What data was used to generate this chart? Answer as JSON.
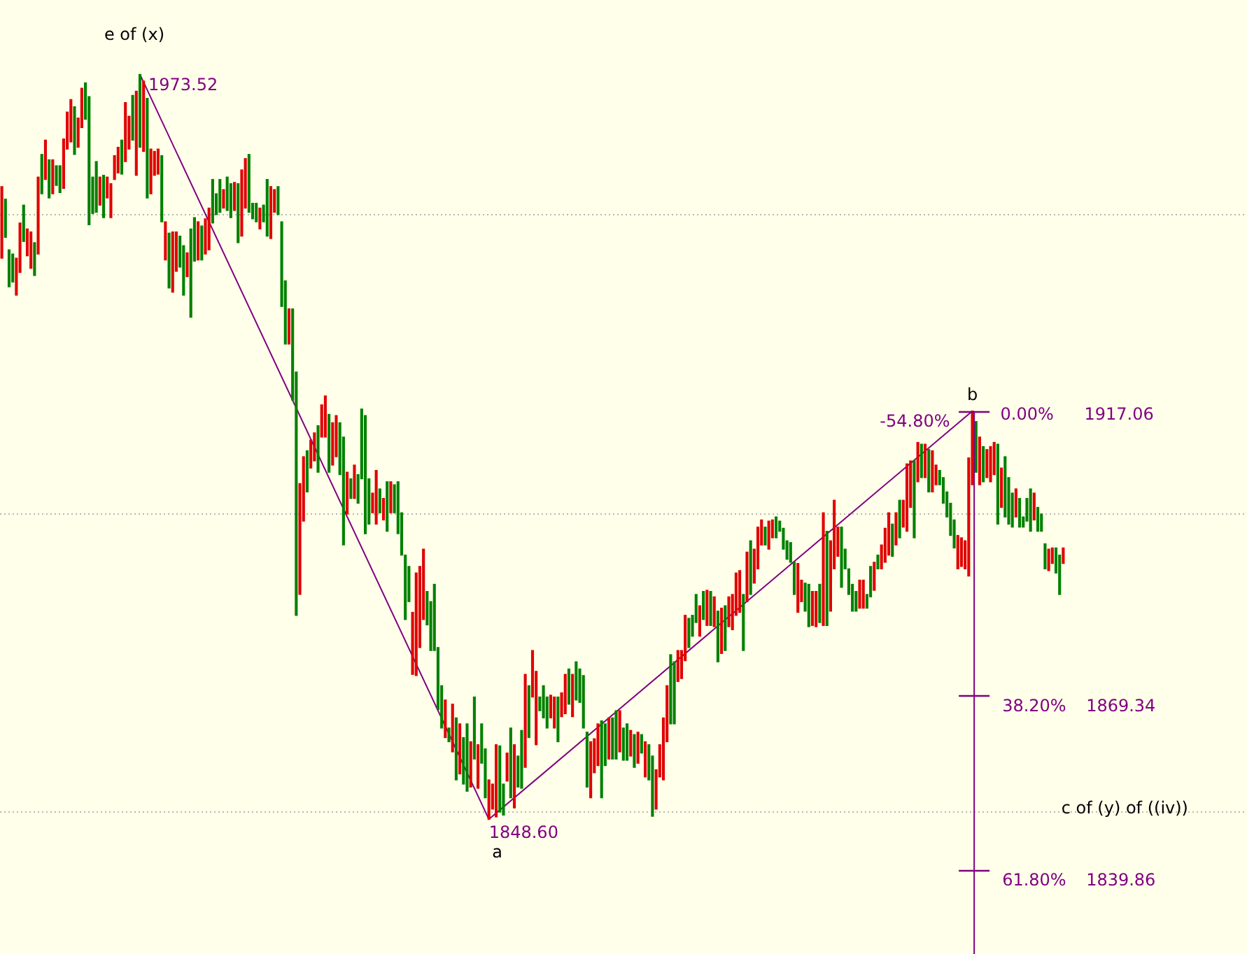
{
  "chart_data": {
    "type": "candlestick",
    "categories": [
      null,
      null,
      null,
      null,
      null,
      null,
      null,
      null,
      null,
      null,
      null,
      null,
      null,
      null,
      null,
      null,
      null,
      null,
      null,
      null,
      null,
      null,
      null,
      null,
      null,
      null,
      null,
      null,
      null,
      null,
      null,
      null,
      null,
      null,
      null,
      null,
      null,
      null,
      null,
      null,
      null,
      null,
      null,
      null,
      null,
      null,
      null,
      null,
      null,
      null,
      null,
      null,
      null,
      null,
      null,
      null,
      null,
      null,
      null,
      null,
      null,
      null,
      null,
      null,
      null,
      null,
      null,
      null,
      null,
      null,
      null,
      null,
      null,
      null,
      null,
      null,
      null,
      null,
      null,
      null,
      null,
      null,
      null,
      null,
      null,
      null,
      null,
      null,
      null,
      null,
      null,
      null,
      null,
      null,
      null,
      null,
      null,
      null,
      null,
      null,
      null,
      null,
      null,
      null,
      null,
      null,
      null,
      null,
      null,
      null,
      null,
      null,
      null,
      null,
      null,
      null,
      null,
      null,
      null,
      null,
      null,
      null,
      null,
      null,
      null,
      null,
      null,
      null,
      null,
      null,
      null,
      null,
      null,
      null,
      null,
      null,
      null,
      null,
      null,
      null,
      null,
      null,
      null,
      null,
      null,
      null,
      null,
      null,
      null,
      null,
      null,
      null,
      null,
      null,
      null,
      null,
      null,
      null,
      null,
      null,
      null,
      null,
      null,
      null,
      null,
      null,
      null,
      null,
      null,
      null,
      null,
      null,
      null,
      null,
      null,
      null,
      null,
      null,
      null,
      null,
      null,
      null,
      null,
      null,
      null,
      null,
      null,
      null,
      null,
      null,
      null,
      null,
      null,
      null,
      null,
      null,
      null,
      null,
      null,
      null,
      null,
      null,
      null,
      null,
      null,
      null,
      null,
      null,
      null,
      null,
      null,
      null,
      null,
      null,
      null,
      null,
      null,
      null,
      null,
      null,
      null,
      null,
      null,
      null,
      null,
      null,
      null,
      null,
      null,
      null,
      null,
      null,
      null,
      null,
      null,
      null,
      null,
      null,
      null,
      null,
      null,
      null,
      null,
      null,
      null,
      null,
      null,
      null,
      null,
      null,
      null,
      null,
      null,
      null,
      null,
      null,
      null,
      null,
      null,
      null,
      null,
      null,
      null,
      null,
      null,
      null,
      null,
      null,
      null,
      null,
      null,
      null,
      null,
      null,
      null,
      null,
      null,
      null,
      null,
      null,
      null,
      null,
      null,
      null,
      null,
      null,
      null,
      null,
      null,
      null,
      null,
      null,
      null
    ],
    "ohlc": [
      [
        1942.7,
        1954.7,
        1942.7,
        1954.7
      ],
      [
        1952.6,
        1952.6,
        1946.2,
        1946.2
      ],
      [
        1944.1,
        1944.1,
        1937.9,
        1937.9
      ],
      [
        1943.4,
        1943.4,
        1938.7,
        1938.7
      ],
      [
        1936.5,
        1942.7,
        1936.5,
        1942.7
      ],
      [
        1940.3,
        1948.6,
        1940.3,
        1948.6
      ],
      [
        1951.6,
        1951.6,
        1945.5,
        1945.5
      ],
      [
        1943.1,
        1947.6,
        1943.1,
        1947.6
      ],
      [
        1941.0,
        1947.1,
        1941.0,
        1947.1
      ],
      [
        1945.3,
        1945.3,
        1939.8,
        1939.8
      ],
      [
        1943.4,
        1956.3,
        1943.4,
        1956.3
      ],
      [
        1960.1,
        1960.1,
        1953.5,
        1953.5
      ],
      [
        1955.9,
        1962.5,
        1955.9,
        1962.5
      ],
      [
        1959.2,
        1959.2,
        1952.8,
        1952.8
      ],
      [
        1953.5,
        1959.2,
        1953.5,
        1959.2
      ],
      [
        1958.2,
        1958.2,
        1954.9,
        1954.9
      ],
      [
        1958.2,
        1958.2,
        1953.7,
        1953.7
      ],
      [
        1954.4,
        1962.7,
        1954.4,
        1962.7
      ],
      [
        1961.0,
        1967.2,
        1961.0,
        1967.2
      ],
      [
        1962.2,
        1969.3,
        1962.2,
        1969.3
      ],
      [
        1968.1,
        1968.1,
        1960.1,
        1960.1
      ],
      [
        1961.3,
        1966.2,
        1961.3,
        1966.2
      ],
      [
        1964.6,
        1971.2,
        1964.6,
        1971.2
      ],
      [
        1972.1,
        1972.1,
        1966.0,
        1966.0
      ],
      [
        1969.8,
        1969.8,
        1948.3,
        1948.3
      ],
      [
        1956.3,
        1956.3,
        1950.2,
        1950.2
      ],
      [
        1958.9,
        1958.9,
        1950.4,
        1950.4
      ],
      [
        1951.6,
        1956.3,
        1951.6,
        1956.3
      ],
      [
        1956.6,
        1956.6,
        1949.5,
        1949.5
      ],
      [
        1952.8,
        1956.3,
        1952.8,
        1956.3
      ],
      [
        1949.5,
        1955.2,
        1949.5,
        1955.2
      ],
      [
        1955.9,
        1959.9,
        1955.9,
        1959.9
      ],
      [
        1957.0,
        1961.3,
        1957.0,
        1961.3
      ],
      [
        1962.5,
        1962.5,
        1956.8,
        1956.8
      ],
      [
        1958.9,
        1968.8,
        1958.9,
        1968.8
      ],
      [
        1961.0,
        1966.5,
        1961.0,
        1966.5
      ],
      [
        1970.0,
        1970.0,
        1962.5,
        1962.5
      ],
      [
        1956.6,
        1970.7,
        1956.6,
        1970.7
      ],
      [
        1973.52,
        1973.52,
        1961.3,
        1961.3
      ],
      [
        1960.6,
        1972.4,
        1960.6,
        1972.4
      ],
      [
        1969.5,
        1969.5,
        1952.8,
        1952.8
      ],
      [
        1953.5,
        1961.0,
        1953.5,
        1961.0
      ],
      [
        1956.6,
        1960.6,
        1956.6,
        1960.6
      ],
      [
        1956.8,
        1961.0,
        1956.8,
        1961.0
      ],
      [
        1959.9,
        1959.9,
        1948.8,
        1948.8
      ],
      [
        1942.4,
        1948.8,
        1942.4,
        1948.8
      ],
      [
        1946.9,
        1946.9,
        1937.7,
        1937.7
      ],
      [
        1937.0,
        1947.1,
        1937.0,
        1947.1
      ],
      [
        1940.5,
        1947.1,
        1940.5,
        1947.1
      ],
      [
        1946.4,
        1946.4,
        1941.2,
        1941.2
      ],
      [
        1944.8,
        1944.8,
        1936.5,
        1936.5
      ],
      [
        1939.6,
        1943.6,
        1939.6,
        1943.6
      ],
      [
        1947.6,
        1947.6,
        1932.8,
        1932.8
      ],
      [
        1949.5,
        1949.5,
        1942.2,
        1942.2
      ],
      [
        1942.4,
        1948.8,
        1942.4,
        1948.8
      ],
      [
        1948.1,
        1948.1,
        1942.4,
        1942.4
      ],
      [
        1943.4,
        1949.3,
        1943.4,
        1949.3
      ],
      [
        1944.1,
        1951.1,
        1944.1,
        1951.1
      ],
      [
        1955.9,
        1955.9,
        1948.6,
        1948.6
      ],
      [
        1953.5,
        1953.5,
        1950.0,
        1950.0
      ],
      [
        1955.9,
        1955.9,
        1950.4,
        1950.4
      ],
      [
        1951.1,
        1954.2,
        1951.1,
        1954.2
      ],
      [
        1956.3,
        1956.3,
        1950.7,
        1950.7
      ],
      [
        1955.2,
        1955.2,
        1949.5,
        1949.5
      ],
      [
        1950.7,
        1955.4,
        1950.7,
        1955.4
      ],
      [
        1955.2,
        1955.2,
        1945.3,
        1945.3
      ],
      [
        1946.4,
        1957.5,
        1946.4,
        1957.5
      ],
      [
        1951.1,
        1959.4,
        1951.1,
        1959.4
      ],
      [
        1960.1,
        1960.1,
        1950.4,
        1950.4
      ],
      [
        1951.9,
        1951.9,
        1949.3,
        1949.3
      ],
      [
        1951.9,
        1951.9,
        1948.8,
        1948.8
      ],
      [
        1947.6,
        1951.1,
        1947.6,
        1951.1
      ],
      [
        1951.6,
        1951.6,
        1948.8,
        1948.8
      ],
      [
        1955.9,
        1955.9,
        1946.4,
        1946.4
      ],
      [
        1946.0,
        1954.7,
        1946.0,
        1954.7
      ],
      [
        1950.4,
        1954.2,
        1950.4,
        1954.2
      ],
      [
        1954.7,
        1954.7,
        1950.0,
        1950.0
      ],
      [
        1948.8,
        1948.8,
        1934.6,
        1934.6
      ],
      [
        1938.9,
        1938.9,
        1928.3,
        1928.3
      ],
      [
        1928.3,
        1934.2,
        1928.3,
        1934.2
      ],
      [
        1934.2,
        1934.2,
        1918.9,
        1918.9
      ],
      [
        1923.6,
        1923.6,
        1882.8,
        1882.8
      ],
      [
        1886.3,
        1904.9,
        1886.3,
        1904.9
      ],
      [
        1898.6,
        1909.4,
        1898.6,
        1909.4
      ],
      [
        1910.4,
        1910.4,
        1903.5,
        1903.5
      ],
      [
        1907.5,
        1912.2,
        1907.5,
        1912.2
      ],
      [
        1908.7,
        1913.4,
        1908.7,
        1913.4
      ],
      [
        1914.6,
        1914.6,
        1906.8,
        1906.8
      ],
      [
        1912.7,
        1918.1,
        1912.7,
        1918.1
      ],
      [
        1912.7,
        1919.6,
        1912.7,
        1919.6
      ],
      [
        1916.5,
        1916.5,
        1906.8,
        1906.8
      ],
      [
        1908.0,
        1915.1,
        1908.0,
        1915.1
      ],
      [
        1909.4,
        1916.3,
        1909.4,
        1916.3
      ],
      [
        1915.1,
        1915.1,
        1906.4,
        1906.4
      ],
      [
        1912.7,
        1912.7,
        1894.6,
        1894.6
      ],
      [
        1899.8,
        1906.8,
        1899.8,
        1906.8
      ],
      [
        1905.7,
        1905.7,
        1902.4,
        1902.4
      ],
      [
        1902.4,
        1908.0,
        1902.4,
        1908.0
      ],
      [
        1906.4,
        1906.4,
        1901.6,
        1901.6
      ],
      [
        1917.4,
        1917.4,
        1905.7,
        1905.7
      ],
      [
        1916.3,
        1916.3,
        1896.5,
        1896.5
      ],
      [
        1905.7,
        1905.7,
        1898.1,
        1898.1
      ],
      [
        1900.0,
        1903.3,
        1900.0,
        1903.3
      ],
      [
        1898.1,
        1907.1,
        1898.1,
        1907.1
      ],
      [
        1904.0,
        1904.0,
        1900.0,
        1900.0
      ],
      [
        1898.8,
        1902.4,
        1898.8,
        1902.4
      ],
      [
        1905.2,
        1905.2,
        1896.9,
        1896.9
      ],
      [
        1900.0,
        1905.2,
        1900.0,
        1905.2
      ],
      [
        1904.7,
        1904.7,
        1900.0,
        1900.0
      ],
      [
        1905.2,
        1905.2,
        1896.5,
        1896.5
      ],
      [
        1900.0,
        1900.0,
        1892.9,
        1892.9
      ],
      [
        1892.9,
        1892.9,
        1882.1,
        1882.1
      ],
      [
        1891.0,
        1891.0,
        1885.1,
        1885.1
      ],
      [
        1872.9,
        1883.3,
        1872.9,
        1883.3
      ],
      [
        1872.7,
        1889.9,
        1872.7,
        1889.9
      ],
      [
        1877.4,
        1891.0,
        1877.4,
        1891.0
      ],
      [
        1882.1,
        1893.9,
        1882.1,
        1893.9
      ],
      [
        1886.8,
        1886.8,
        1881.2,
        1881.2
      ],
      [
        1885.1,
        1885.1,
        1876.9,
        1876.9
      ],
      [
        1888.0,
        1888.0,
        1876.9,
        1876.9
      ],
      [
        1877.4,
        1877.4,
        1867.0,
        1867.0
      ],
      [
        1871.0,
        1871.0,
        1863.9,
        1863.9
      ],
      [
        1862.3,
        1868.6,
        1862.3,
        1868.6
      ],
      [
        1863.9,
        1863.9,
        1861.6,
        1861.6
      ],
      [
        1859.9,
        1867.9,
        1859.9,
        1867.9
      ],
      [
        1865.6,
        1865.6,
        1855.2,
        1855.2
      ],
      [
        1856.2,
        1864.6,
        1856.2,
        1864.6
      ],
      [
        1862.3,
        1862.3,
        1854.5,
        1854.5
      ],
      [
        1864.6,
        1864.6,
        1853.3,
        1853.3
      ],
      [
        1854.0,
        1861.6,
        1854.0,
        1861.6
      ],
      [
        1869.1,
        1869.1,
        1858.7,
        1858.7
      ],
      [
        1853.8,
        1861.1,
        1853.8,
        1861.1
      ],
      [
        1864.6,
        1864.6,
        1858.0,
        1858.0
      ],
      [
        1860.4,
        1860.4,
        1852.2,
        1852.2
      ],
      [
        1848.6,
        1855.2,
        1848.6,
        1855.2
      ],
      [
        1850.3,
        1854.5,
        1850.3,
        1854.5
      ],
      [
        1849.0,
        1861.1,
        1849.0,
        1861.1
      ],
      [
        1860.9,
        1860.9,
        1849.8,
        1849.8
      ],
      [
        1854.5,
        1854.5,
        1849.3,
        1849.3
      ],
      [
        1855.0,
        1859.7,
        1855.0,
        1859.7
      ],
      [
        1863.9,
        1863.9,
        1852.2,
        1852.2
      ],
      [
        1850.5,
        1861.1,
        1850.5,
        1861.1
      ],
      [
        1859.2,
        1859.2,
        1854.0,
        1854.0
      ],
      [
        1863.5,
        1863.5,
        1853.8,
        1853.8
      ],
      [
        1857.3,
        1872.9,
        1857.3,
        1872.9
      ],
      [
        1871.0,
        1871.0,
        1862.3,
        1862.3
      ],
      [
        1869.1,
        1876.9,
        1869.1,
        1876.9
      ],
      [
        1861.1,
        1873.4,
        1861.1,
        1873.4
      ],
      [
        1869.1,
        1869.1,
        1866.8,
        1866.8
      ],
      [
        1871.0,
        1871.0,
        1865.6,
        1865.6
      ],
      [
        1869.1,
        1869.1,
        1863.9,
        1863.9
      ],
      [
        1865.6,
        1869.4,
        1865.6,
        1869.4
      ],
      [
        1863.9,
        1869.1,
        1863.9,
        1869.1
      ],
      [
        1869.1,
        1869.1,
        1861.6,
        1861.6
      ],
      [
        1865.8,
        1869.8,
        1865.8,
        1869.8
      ],
      [
        1866.3,
        1872.9,
        1866.3,
        1872.9
      ],
      [
        1873.8,
        1873.8,
        1867.9,
        1867.9
      ],
      [
        1865.8,
        1872.9,
        1865.8,
        1872.9
      ],
      [
        1875.0,
        1875.0,
        1868.6,
        1868.6
      ],
      [
        1873.8,
        1873.8,
        1868.2,
        1868.2
      ],
      [
        1872.7,
        1872.7,
        1863.9,
        1863.9
      ],
      [
        1863.2,
        1863.2,
        1854.0,
        1854.0
      ],
      [
        1852.2,
        1861.6,
        1852.2,
        1861.6
      ],
      [
        1856.4,
        1862.1,
        1856.4,
        1862.1
      ],
      [
        1857.6,
        1864.6,
        1857.6,
        1864.6
      ],
      [
        1865.1,
        1865.1,
        1852.2,
        1852.2
      ],
      [
        1864.6,
        1864.6,
        1857.6,
        1857.6
      ],
      [
        1858.7,
        1865.6,
        1858.7,
        1865.6
      ],
      [
        1865.6,
        1865.6,
        1858.7,
        1858.7
      ],
      [
        1866.8,
        1866.8,
        1858.7,
        1858.7
      ],
      [
        1859.9,
        1866.8,
        1859.9,
        1866.8
      ],
      [
        1863.9,
        1863.9,
        1858.5,
        1858.5
      ],
      [
        1864.6,
        1864.6,
        1858.5,
        1858.5
      ],
      [
        1859.2,
        1863.5,
        1859.2,
        1863.5
      ],
      [
        1862.8,
        1862.8,
        1857.3,
        1857.3
      ],
      [
        1858.0,
        1863.2,
        1858.0,
        1863.2
      ],
      [
        1862.8,
        1862.8,
        1859.7,
        1859.7
      ],
      [
        1855.7,
        1861.6,
        1855.7,
        1861.6
      ],
      [
        1861.1,
        1861.1,
        1855.2,
        1855.2
      ],
      [
        1859.2,
        1859.2,
        1849.1,
        1849.1
      ],
      [
        1850.3,
        1856.9,
        1850.3,
        1856.9
      ],
      [
        1855.7,
        1861.1,
        1855.7,
        1861.1
      ],
      [
        1855.2,
        1865.6,
        1855.2,
        1865.6
      ],
      [
        1861.6,
        1871.0,
        1861.6,
        1871.0
      ],
      [
        1876.2,
        1876.2,
        1864.6,
        1864.6
      ],
      [
        1875.0,
        1875.0,
        1864.6,
        1864.6
      ],
      [
        1871.7,
        1876.9,
        1871.7,
        1876.9
      ],
      [
        1872.2,
        1876.9,
        1872.2,
        1876.9
      ],
      [
        1875.2,
        1882.8,
        1875.2,
        1882.8
      ],
      [
        1882.3,
        1882.3,
        1877.4,
        1877.4
      ],
      [
        1882.8,
        1882.8,
        1879.3,
        1879.3
      ],
      [
        1886.3,
        1886.3,
        1881.6,
        1881.6
      ],
      [
        1879.3,
        1884.4,
        1879.3,
        1884.4
      ],
      [
        1886.8,
        1886.8,
        1882.1,
        1882.1
      ],
      [
        1881.1,
        1887.0,
        1881.1,
        1887.0
      ],
      [
        1886.8,
        1886.8,
        1881.1,
        1881.1
      ],
      [
        1880.9,
        1885.9,
        1880.9,
        1885.9
      ],
      [
        1883.5,
        1883.5,
        1875.0,
        1875.0
      ],
      [
        1876.4,
        1884.0,
        1876.4,
        1884.0
      ],
      [
        1884.4,
        1884.4,
        1876.9,
        1876.9
      ],
      [
        1880.9,
        1885.9,
        1880.9,
        1885.9
      ],
      [
        1880.4,
        1886.3,
        1880.4,
        1886.3
      ],
      [
        1882.8,
        1889.9,
        1882.8,
        1889.9
      ],
      [
        1883.3,
        1890.3,
        1883.3,
        1890.3
      ],
      [
        1886.3,
        1886.3,
        1876.9,
        1876.9
      ],
      [
        1885.1,
        1893.4,
        1885.1,
        1893.4
      ],
      [
        1895.3,
        1895.3,
        1886.3,
        1886.3
      ],
      [
        1888.2,
        1893.9,
        1888.2,
        1893.9
      ],
      [
        1890.6,
        1897.6,
        1890.6,
        1897.6
      ],
      [
        1894.6,
        1898.8,
        1894.6,
        1898.8
      ],
      [
        1897.6,
        1897.6,
        1894.6,
        1894.6
      ],
      [
        1893.9,
        1898.6,
        1893.9,
        1898.6
      ],
      [
        1895.8,
        1898.8,
        1895.8,
        1898.8
      ],
      [
        1899.3,
        1899.3,
        1895.8,
        1895.8
      ],
      [
        1898.6,
        1898.6,
        1896.9,
        1896.9
      ],
      [
        1897.4,
        1897.4,
        1893.9,
        1893.9
      ],
      [
        1895.3,
        1895.3,
        1892.2,
        1892.2
      ],
      [
        1895.0,
        1895.0,
        1891.7,
        1891.7
      ],
      [
        1891.7,
        1891.7,
        1886.3,
        1886.3
      ],
      [
        1883.3,
        1891.5,
        1883.3,
        1891.5
      ],
      [
        1885.1,
        1888.7,
        1885.1,
        1888.7
      ],
      [
        1888.2,
        1888.2,
        1883.5,
        1883.5
      ],
      [
        1888.0,
        1888.0,
        1880.9,
        1880.9
      ],
      [
        1881.1,
        1886.8,
        1881.1,
        1886.8
      ],
      [
        1880.9,
        1886.8,
        1880.9,
        1886.8
      ],
      [
        1888.0,
        1888.0,
        1881.6,
        1881.6
      ],
      [
        1881.1,
        1900.0,
        1881.1,
        1900.0
      ],
      [
        1896.9,
        1896.9,
        1881.1,
        1881.1
      ],
      [
        1883.5,
        1895.3,
        1883.5,
        1895.3
      ],
      [
        1890.6,
        1902.1,
        1890.6,
        1902.1
      ],
      [
        1892.7,
        1897.6,
        1892.7,
        1897.6
      ],
      [
        1897.6,
        1897.6,
        1887.5,
        1887.5
      ],
      [
        1893.9,
        1893.9,
        1890.6,
        1890.6
      ],
      [
        1890.6,
        1890.6,
        1886.3,
        1886.3
      ],
      [
        1888.0,
        1888.0,
        1883.5,
        1883.5
      ],
      [
        1886.8,
        1886.8,
        1883.5,
        1883.5
      ],
      [
        1884.0,
        1888.7,
        1884.0,
        1888.7
      ],
      [
        1884.0,
        1888.7,
        1884.0,
        1888.7
      ],
      [
        1886.3,
        1886.3,
        1884.0,
        1884.0
      ],
      [
        1891.0,
        1891.0,
        1885.9,
        1885.9
      ],
      [
        1887.0,
        1891.7,
        1887.0,
        1891.7
      ],
      [
        1892.9,
        1892.9,
        1890.6,
        1890.6
      ],
      [
        1890.6,
        1894.6,
        1890.6,
        1894.6
      ],
      [
        1891.7,
        1897.4,
        1891.7,
        1897.4
      ],
      [
        1892.9,
        1900.0,
        1892.9,
        1900.0
      ],
      [
        1898.1,
        1898.1,
        1892.7,
        1892.7
      ],
      [
        1894.6,
        1900.0,
        1894.6,
        1900.0
      ],
      [
        1902.1,
        1902.1,
        1895.8,
        1895.8
      ],
      [
        1897.6,
        1902.1,
        1897.6,
        1902.1
      ],
      [
        1896.9,
        1908.2,
        1896.9,
        1908.2
      ],
      [
        1900.9,
        1908.7,
        1900.9,
        1908.7
      ],
      [
        1908.7,
        1908.7,
        1895.8,
        1895.8
      ],
      [
        1905.2,
        1911.8,
        1905.2,
        1911.8
      ],
      [
        1911.5,
        1911.5,
        1905.9,
        1905.9
      ],
      [
        1905.9,
        1911.5,
        1905.9,
        1911.5
      ],
      [
        1910.6,
        1910.6,
        1903.5,
        1903.5
      ],
      [
        1903.5,
        1910.4,
        1903.5,
        1910.4
      ],
      [
        1904.7,
        1908.0,
        1904.7,
        1908.0
      ],
      [
        1907.1,
        1907.1,
        1904.7,
        1904.7
      ],
      [
        1905.9,
        1905.9,
        1901.6,
        1901.6
      ],
      [
        1903.5,
        1903.5,
        1899.3,
        1899.3
      ],
      [
        1901.6,
        1901.6,
        1896.2,
        1896.2
      ],
      [
        1898.8,
        1898.8,
        1894.1,
        1894.1
      ],
      [
        1890.6,
        1896.2,
        1890.6,
        1896.2
      ],
      [
        1891.0,
        1895.8,
        1891.0,
        1895.8
      ],
      [
        1890.6,
        1895.3,
        1890.6,
        1895.3
      ],
      [
        1889.4,
        1909.2,
        1889.4,
        1909.2
      ],
      [
        1904.7,
        1917.06,
        1904.7,
        1917.06
      ],
      [
        1915.3,
        1915.3,
        1906.8,
        1906.8
      ],
      [
        1904.7,
        1912.7,
        1904.7,
        1912.7
      ],
      [
        1911.1,
        1911.1,
        1905.2,
        1905.2
      ],
      [
        1905.9,
        1910.6,
        1905.9,
        1910.6
      ],
      [
        1905.2,
        1911.1,
        1905.2,
        1911.1
      ],
      [
        1906.4,
        1911.8,
        1906.4,
        1911.8
      ],
      [
        1911.5,
        1911.5,
        1898.1,
        1898.1
      ],
      [
        1900.9,
        1907.5,
        1900.9,
        1907.5
      ],
      [
        1909.4,
        1909.4,
        1899.3,
        1899.3
      ],
      [
        1905.9,
        1905.9,
        1898.1,
        1898.1
      ],
      [
        1903.3,
        1903.3,
        1897.6,
        1897.6
      ],
      [
        1899.3,
        1904.0,
        1899.3,
        1904.0
      ],
      [
        1902.4,
        1902.4,
        1897.6,
        1897.6
      ],
      [
        1899.3,
        1899.3,
        1897.6,
        1897.6
      ],
      [
        1902.4,
        1902.4,
        1898.6,
        1898.6
      ],
      [
        1904.0,
        1904.0,
        1896.9,
        1896.9
      ],
      [
        1898.8,
        1903.3,
        1898.8,
        1903.3
      ],
      [
        1900.9,
        1900.9,
        1896.9,
        1896.9
      ],
      [
        1899.8,
        1899.8,
        1896.9,
        1896.9
      ],
      [
        1894.8,
        1894.8,
        1890.6,
        1890.6
      ],
      [
        1890.3,
        1893.9,
        1890.3,
        1893.9
      ],
      [
        1891.5,
        1894.1,
        1891.5,
        1894.1
      ],
      [
        1894.1,
        1894.1,
        1889.9,
        1889.9
      ],
      [
        1892.9,
        1892.9,
        1886.3,
        1886.3
      ],
      [
        1891.5,
        1894.1,
        1891.5,
        1894.1
      ]
    ],
    "colors": [
      "#e00000",
      "#008000",
      "#008000",
      "#008000",
      "#e00000",
      "#e00000",
      "#008000",
      "#e00000",
      "#e00000",
      "#008000",
      "#e00000",
      "#008000",
      "#e00000",
      "#008000",
      "#e00000",
      "#008000",
      "#008000",
      "#e00000",
      "#e00000",
      "#e00000",
      "#008000",
      "#e00000",
      "#e00000",
      "#008000",
      "#008000",
      "#008000",
      "#008000",
      "#e00000",
      "#008000",
      "#e00000",
      "#e00000",
      "#e00000",
      "#e00000",
      "#008000",
      "#e00000",
      "#e00000",
      "#008000",
      "#e00000",
      "#008000",
      "#e00000",
      "#008000",
      "#e00000",
      "#e00000",
      "#e00000",
      "#008000",
      "#e00000",
      "#008000",
      "#e00000",
      "#e00000",
      "#008000",
      "#008000",
      "#e00000",
      "#008000",
      "#008000",
      "#e00000",
      "#008000",
      "#e00000",
      "#e00000",
      "#008000",
      "#008000",
      "#008000",
      "#e00000",
      "#008000",
      "#008000",
      "#e00000",
      "#008000",
      "#e00000",
      "#e00000",
      "#008000",
      "#008000",
      "#008000",
      "#e00000",
      "#008000",
      "#008000",
      "#e00000",
      "#e00000",
      "#008000",
      "#008000",
      "#008000",
      "#e00000",
      "#008000",
      "#008000",
      "#e00000",
      "#e00000",
      "#008000",
      "#e00000",
      "#e00000",
      "#008000",
      "#e00000",
      "#e00000",
      "#008000",
      "#e00000",
      "#e00000",
      "#008000",
      "#008000",
      "#e00000",
      "#008000",
      "#e00000",
      "#008000",
      "#008000",
      "#008000",
      "#008000",
      "#e00000",
      "#e00000",
      "#008000",
      "#e00000",
      "#008000",
      "#e00000",
      "#008000",
      "#008000",
      "#008000",
      "#008000",
      "#008000",
      "#e00000",
      "#e00000",
      "#e00000",
      "#e00000",
      "#008000",
      "#008000",
      "#008000",
      "#008000",
      "#008000",
      "#e00000",
      "#008000",
      "#e00000",
      "#008000",
      "#e00000",
      "#008000",
      "#008000",
      "#e00000",
      "#008000",
      "#e00000",
      "#008000",
      "#008000",
      "#e00000",
      "#e00000",
      "#e00000",
      "#008000",
      "#008000",
      "#e00000",
      "#008000",
      "#e00000",
      "#008000",
      "#008000",
      "#e00000",
      "#008000",
      "#e00000",
      "#e00000",
      "#008000",
      "#008000",
      "#008000",
      "#e00000",
      "#e00000",
      "#008000",
      "#e00000",
      "#e00000",
      "#008000",
      "#e00000",
      "#008000",
      "#008000",
      "#008000",
      "#008000",
      "#e00000",
      "#e00000",
      "#e00000",
      "#008000",
      "#008000",
      "#e00000",
      "#008000",
      "#008000",
      "#e00000",
      "#008000",
      "#008000",
      "#e00000",
      "#008000",
      "#e00000",
      "#008000",
      "#e00000",
      "#008000",
      "#008000",
      "#e00000",
      "#e00000",
      "#e00000",
      "#e00000",
      "#008000",
      "#008000",
      "#e00000",
      "#e00000",
      "#e00000",
      "#008000",
      "#008000",
      "#008000",
      "#e00000",
      "#008000",
      "#e00000",
      "#008000",
      "#e00000",
      "#008000",
      "#e00000",
      "#008000",
      "#e00000",
      "#e00000",
      "#e00000",
      "#e00000",
      "#008000",
      "#e00000",
      "#008000",
      "#e00000",
      "#e00000",
      "#e00000",
      "#008000",
      "#e00000",
      "#e00000",
      "#008000",
      "#008000",
      "#008000",
      "#008000",
      "#008000",
      "#008000",
      "#e00000",
      "#e00000",
      "#008000",
      "#008000",
      "#e00000",
      "#e00000",
      "#008000",
      "#e00000",
      "#008000",
      "#e00000",
      "#e00000",
      "#e00000",
      "#008000",
      "#008000",
      "#008000",
      "#008000",
      "#008000",
      "#e00000",
      "#e00000",
      "#008000",
      "#008000",
      "#e00000",
      "#008000",
      "#e00000",
      "#e00000",
      "#e00000",
      "#008000",
      "#e00000",
      "#008000",
      "#e00000",
      "#e00000",
      "#e00000",
      "#008000",
      "#e00000",
      "#008000",
      "#e00000",
      "#008000",
      "#e00000",
      "#e00000",
      "#008000",
      "#008000",
      "#008000",
      "#008000",
      "#008000",
      "#e00000",
      "#e00000",
      "#e00000",
      "#e00000",
      "#e00000",
      "#008000",
      "#e00000",
      "#008000",
      "#e00000",
      "#e00000",
      "#e00000",
      "#008000",
      "#e00000",
      "#008000",
      "#008000",
      "#008000",
      "#e00000",
      "#008000",
      "#008000",
      "#008000",
      "#008000",
      "#e00000",
      "#008000",
      "#008000",
      "#008000",
      "#e00000",
      "#e00000",
      "#008000",
      "#008000",
      "#e00000"
    ],
    "series": [
      {
        "type": "line",
        "color": "#800080",
        "values": [
          null,
          null,
          null,
          null,
          null,
          null,
          null,
          null,
          null,
          null,
          null,
          null,
          null,
          null,
          null,
          null,
          null,
          null,
          null,
          null,
          null,
          null,
          null,
          null,
          null,
          null,
          null,
          null,
          null,
          null,
          null,
          null,
          null,
          null,
          null,
          null,
          null,
          null,
          1973.52,
          null,
          null,
          null,
          null,
          null,
          null,
          null,
          null,
          null,
          null,
          null,
          null,
          null,
          null,
          null,
          null,
          null,
          null,
          null,
          null,
          null,
          null,
          null,
          null,
          null,
          null,
          null,
          null,
          null,
          null,
          null,
          null,
          null,
          null,
          null,
          null,
          null,
          null,
          null,
          null,
          null,
          null,
          null,
          null,
          null,
          null,
          null,
          null,
          null,
          null,
          null,
          null,
          null,
          null,
          null,
          null,
          null,
          null,
          null,
          null,
          null,
          null,
          null,
          null,
          null,
          null,
          null,
          null,
          null,
          null,
          null,
          null,
          null,
          null,
          null,
          null,
          null,
          null,
          null,
          null,
          null,
          null,
          null,
          null,
          null,
          null,
          null,
          null,
          null,
          null,
          null,
          null,
          null,
          null,
          null,
          1848.6,
          null,
          null,
          null,
          null,
          null,
          null,
          null,
          null,
          null,
          null,
          null,
          null,
          null,
          null,
          null,
          null,
          null,
          null,
          null,
          null,
          null,
          null,
          null,
          null,
          null,
          null,
          null,
          null,
          null,
          null,
          null,
          null,
          null,
          null,
          null,
          null,
          null,
          null,
          null,
          null,
          null,
          null,
          null,
          null,
          null,
          null,
          null,
          null,
          null,
          null,
          null,
          null,
          null,
          null,
          null,
          null,
          null,
          null,
          null,
          null,
          null,
          null,
          null,
          null,
          null,
          null,
          null,
          null,
          null,
          null,
          null,
          null,
          null,
          null,
          null,
          null,
          null,
          null,
          null,
          null,
          null,
          null,
          null,
          null,
          null,
          null,
          null,
          null,
          null,
          null,
          null,
          null,
          null,
          null,
          null,
          null,
          null,
          null,
          null,
          null,
          null,
          null,
          null,
          null,
          null,
          null,
          null,
          null,
          null,
          null,
          null,
          null,
          null,
          null,
          null,
          null,
          null,
          null,
          null,
          null,
          null,
          null,
          null,
          null,
          null,
          null,
          null,
          null,
          null,
          null,
          null,
          null,
          1917.06,
          null,
          null,
          null,
          null,
          null,
          null,
          null,
          null,
          null,
          null,
          null,
          null,
          null,
          null,
          null,
          null,
          null,
          null,
          null,
          null,
          null,
          null,
          null,
          null,
          null
        ]
      }
    ],
    "ylim": [
      1826,
      1986
    ],
    "yticks": [
      {
        "value": 1850,
        "label": null
      },
      {
        "value": 1900,
        "label": null
      },
      {
        "value": 1950,
        "label": null
      }
    ],
    "grid": "y",
    "legend": false,
    "annotations": [
      "e of (x)",
      "1973.52",
      "1848.60",
      "a",
      "b",
      "-54.80%",
      "0.00%",
      "1917.06",
      "38.20%",
      "1869.34",
      "61.80%",
      "1839.86",
      "c of (y) of ((iv))"
    ]
  }
}
